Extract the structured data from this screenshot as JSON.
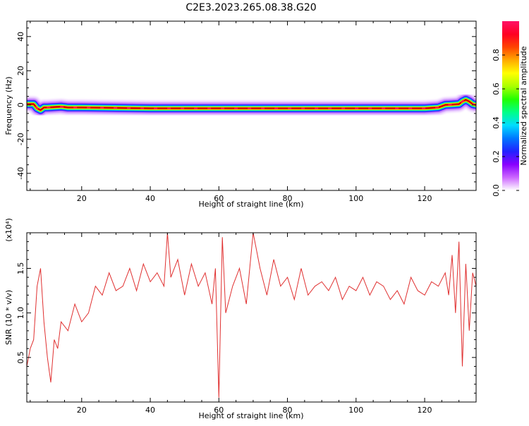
{
  "figure_title": "C2E3.2023.265.08.38.G20",
  "colors": {
    "trace": "#e03030",
    "colormap": [
      "#ffffff",
      "#cc66ff",
      "#8800ff",
      "#2222ff",
      "#0077ff",
      "#00ddff",
      "#00ff88",
      "#22ff00",
      "#aaff00",
      "#ffff00",
      "#ffaa00",
      "#ff4400",
      "#ff0022",
      "#ff1166"
    ]
  },
  "chart_data": [
    {
      "type": "heatmap",
      "title": "",
      "xlabel": "Height of straight line (km)",
      "ylabel": "Frequency (Hz)",
      "xlim": [
        4,
        135
      ],
      "ylim": [
        -50,
        49
      ],
      "x_ticks": [
        20,
        40,
        60,
        80,
        100,
        120
      ],
      "y_ticks": [
        -40,
        -20,
        0,
        20,
        40
      ],
      "colorbar": {
        "label": "Normalized spectral amplitude",
        "range": [
          0.0,
          1.0
        ],
        "ticks": [
          "0.0",
          "0.2",
          "0.4",
          "0.6",
          "0.8"
        ]
      },
      "ridge": {
        "x": [
          4,
          6,
          7,
          8,
          9,
          10,
          14,
          16,
          20,
          40,
          60,
          80,
          100,
          120,
          124,
          126,
          128,
          130,
          131,
          132,
          133,
          134,
          135
        ],
        "freq": [
          0.5,
          0.5,
          -2,
          -3,
          -1.5,
          -1.5,
          -1,
          -1.5,
          -1.5,
          -2,
          -2,
          -2,
          -2,
          -2,
          -1.5,
          0,
          0.2,
          0.5,
          2,
          3,
          2,
          0.5,
          0
        ],
        "peak_amplitude": 1.0,
        "band_halfwidth_hz": [
          3,
          5
        ]
      }
    },
    {
      "type": "line",
      "title": "",
      "xlabel": "Height of straight line (km)",
      "ylabel": "SNR (10 * v/v)",
      "y_multiplier": "(x10⁴)",
      "xlim": [
        4,
        135
      ],
      "ylim": [
        0,
        1.9
      ],
      "x_ticks": [
        20,
        40,
        60,
        80,
        100,
        120
      ],
      "y_ticks": [
        "0.5",
        "1.0",
        "1.5"
      ],
      "series": [
        {
          "x": [
            4,
            5,
            6,
            7,
            8,
            9,
            10,
            11,
            12,
            13,
            14,
            16,
            18,
            20,
            22,
            24,
            26,
            28,
            30,
            32,
            34,
            36,
            38,
            40,
            42,
            44,
            45,
            46,
            48,
            50,
            52,
            54,
            56,
            58,
            59,
            60,
            61,
            62,
            64,
            66,
            68,
            70,
            72,
            74,
            76,
            78,
            80,
            82,
            84,
            86,
            88,
            90,
            92,
            94,
            96,
            98,
            100,
            102,
            104,
            106,
            108,
            110,
            112,
            114,
            116,
            118,
            120,
            122,
            124,
            126,
            127,
            128,
            129,
            130,
            131,
            132,
            133,
            134,
            135
          ],
          "y": [
            0.4,
            0.6,
            0.7,
            1.3,
            1.5,
            0.9,
            0.5,
            0.22,
            0.7,
            0.6,
            0.9,
            0.8,
            1.1,
            0.9,
            1.0,
            1.3,
            1.2,
            1.45,
            1.25,
            1.3,
            1.5,
            1.25,
            1.55,
            1.35,
            1.45,
            1.3,
            1.9,
            1.4,
            1.6,
            1.2,
            1.55,
            1.3,
            1.45,
            1.1,
            1.5,
            0.05,
            1.85,
            1.0,
            1.3,
            1.5,
            1.1,
            1.9,
            1.5,
            1.2,
            1.6,
            1.3,
            1.4,
            1.15,
            1.5,
            1.2,
            1.3,
            1.35,
            1.25,
            1.4,
            1.15,
            1.3,
            1.25,
            1.4,
            1.2,
            1.35,
            1.3,
            1.15,
            1.25,
            1.1,
            1.4,
            1.25,
            1.2,
            1.35,
            1.3,
            1.45,
            1.2,
            1.65,
            1.0,
            1.8,
            0.4,
            1.55,
            0.8,
            1.45,
            1.3
          ]
        }
      ]
    }
  ]
}
